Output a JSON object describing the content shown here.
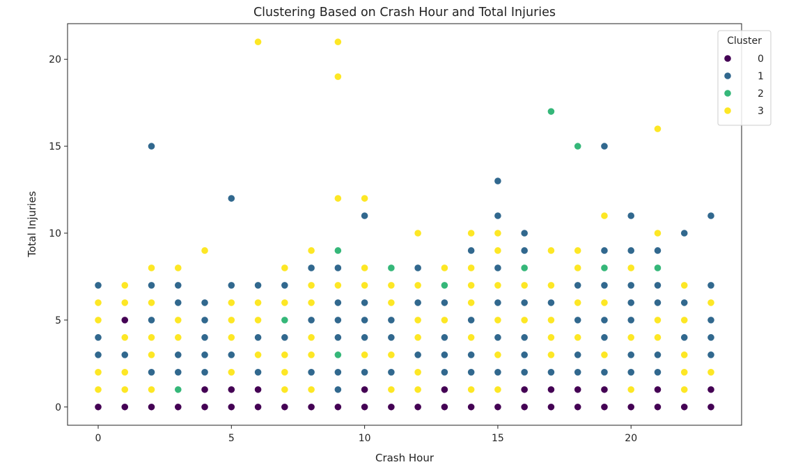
{
  "chart_data": {
    "type": "scatter",
    "title": "Clustering Based on Crash Hour and Total Injuries",
    "xlabel": "Crash Hour",
    "ylabel": "Total Injuries",
    "xlim": [
      -1.15,
      24.15
    ],
    "ylim": [
      -1.05,
      22.05
    ],
    "xticks": [
      0,
      5,
      10,
      15,
      20
    ],
    "yticks": [
      0,
      5,
      10,
      15,
      20
    ],
    "grid": false,
    "legend": {
      "title": "Cluster",
      "position": "top-right"
    },
    "colors": {
      "0": "#440154",
      "1": "#31688e",
      "2": "#35b779",
      "3": "#fde725"
    },
    "series": [
      {
        "name": "0",
        "points": [
          [
            0,
            0
          ],
          [
            1,
            0
          ],
          [
            1,
            5
          ],
          [
            2,
            0
          ],
          [
            3,
            0
          ],
          [
            4,
            0
          ],
          [
            4,
            1
          ],
          [
            5,
            0
          ],
          [
            5,
            1
          ],
          [
            6,
            0
          ],
          [
            6,
            1
          ],
          [
            7,
            0
          ],
          [
            8,
            0
          ],
          [
            9,
            0
          ],
          [
            10,
            0
          ],
          [
            10,
            1
          ],
          [
            11,
            0
          ],
          [
            12,
            0
          ],
          [
            13,
            0
          ],
          [
            13,
            1
          ],
          [
            14,
            0
          ],
          [
            15,
            0
          ],
          [
            16,
            0
          ],
          [
            16,
            1
          ],
          [
            17,
            0
          ],
          [
            17,
            1
          ],
          [
            18,
            0
          ],
          [
            18,
            1
          ],
          [
            19,
            0
          ],
          [
            19,
            1
          ],
          [
            20,
            0
          ],
          [
            21,
            0
          ],
          [
            21,
            1
          ],
          [
            22,
            0
          ],
          [
            23,
            0
          ],
          [
            23,
            1
          ]
        ]
      },
      {
        "name": "1",
        "points": [
          [
            0,
            3
          ],
          [
            0,
            4
          ],
          [
            0,
            7
          ],
          [
            1,
            3
          ],
          [
            2,
            2
          ],
          [
            2,
            5
          ],
          [
            2,
            7
          ],
          [
            2,
            15
          ],
          [
            3,
            2
          ],
          [
            3,
            3
          ],
          [
            3,
            6
          ],
          [
            3,
            7
          ],
          [
            4,
            2
          ],
          [
            4,
            3
          ],
          [
            4,
            4
          ],
          [
            4,
            5
          ],
          [
            4,
            6
          ],
          [
            5,
            3
          ],
          [
            5,
            7
          ],
          [
            5,
            12
          ],
          [
            6,
            2
          ],
          [
            6,
            4
          ],
          [
            6,
            7
          ],
          [
            7,
            4
          ],
          [
            7,
            7
          ],
          [
            8,
            2
          ],
          [
            8,
            5
          ],
          [
            8,
            8
          ],
          [
            9,
            1
          ],
          [
            9,
            2
          ],
          [
            9,
            4
          ],
          [
            9,
            5
          ],
          [
            9,
            6
          ],
          [
            9,
            8
          ],
          [
            10,
            2
          ],
          [
            10,
            4
          ],
          [
            10,
            5
          ],
          [
            10,
            6
          ],
          [
            10,
            11
          ],
          [
            11,
            2
          ],
          [
            11,
            4
          ],
          [
            11,
            5
          ],
          [
            12,
            3
          ],
          [
            12,
            6
          ],
          [
            12,
            8
          ],
          [
            13,
            2
          ],
          [
            13,
            3
          ],
          [
            13,
            4
          ],
          [
            13,
            6
          ],
          [
            14,
            2
          ],
          [
            14,
            3
          ],
          [
            14,
            5
          ],
          [
            14,
            9
          ],
          [
            15,
            2
          ],
          [
            15,
            4
          ],
          [
            15,
            6
          ],
          [
            15,
            8
          ],
          [
            15,
            11
          ],
          [
            15,
            13
          ],
          [
            16,
            2
          ],
          [
            16,
            3
          ],
          [
            16,
            4
          ],
          [
            16,
            6
          ],
          [
            16,
            9
          ],
          [
            16,
            10
          ],
          [
            17,
            2
          ],
          [
            17,
            6
          ],
          [
            18,
            2
          ],
          [
            18,
            3
          ],
          [
            18,
            5
          ],
          [
            18,
            7
          ],
          [
            19,
            2
          ],
          [
            19,
            4
          ],
          [
            19,
            5
          ],
          [
            19,
            7
          ],
          [
            19,
            9
          ],
          [
            19,
            15
          ],
          [
            20,
            2
          ],
          [
            20,
            3
          ],
          [
            20,
            5
          ],
          [
            20,
            6
          ],
          [
            20,
            7
          ],
          [
            20,
            9
          ],
          [
            20,
            11
          ],
          [
            21,
            2
          ],
          [
            21,
            3
          ],
          [
            21,
            6
          ],
          [
            21,
            7
          ],
          [
            21,
            9
          ],
          [
            22,
            4
          ],
          [
            22,
            6
          ],
          [
            22,
            10
          ],
          [
            23,
            3
          ],
          [
            23,
            4
          ],
          [
            23,
            5
          ],
          [
            23,
            7
          ],
          [
            23,
            11
          ]
        ]
      },
      {
        "name": "2",
        "points": [
          [
            3,
            1
          ],
          [
            7,
            5
          ],
          [
            9,
            3
          ],
          [
            9,
            9
          ],
          [
            11,
            8
          ],
          [
            13,
            7
          ],
          [
            16,
            8
          ],
          [
            17,
            17
          ],
          [
            18,
            15
          ],
          [
            19,
            8
          ],
          [
            21,
            8
          ]
        ]
      },
      {
        "name": "3",
        "points": [
          [
            0,
            1
          ],
          [
            0,
            2
          ],
          [
            0,
            5
          ],
          [
            0,
            6
          ],
          [
            1,
            1
          ],
          [
            1,
            2
          ],
          [
            1,
            4
          ],
          [
            1,
            6
          ],
          [
            1,
            7
          ],
          [
            2,
            1
          ],
          [
            2,
            3
          ],
          [
            2,
            4
          ],
          [
            2,
            6
          ],
          [
            2,
            8
          ],
          [
            3,
            4
          ],
          [
            3,
            5
          ],
          [
            3,
            8
          ],
          [
            4,
            9
          ],
          [
            5,
            2
          ],
          [
            5,
            4
          ],
          [
            5,
            5
          ],
          [
            5,
            6
          ],
          [
            6,
            3
          ],
          [
            6,
            5
          ],
          [
            6,
            6
          ],
          [
            6,
            21
          ],
          [
            7,
            1
          ],
          [
            7,
            2
          ],
          [
            7,
            3
          ],
          [
            7,
            6
          ],
          [
            7,
            8
          ],
          [
            8,
            1
          ],
          [
            8,
            3
          ],
          [
            8,
            4
          ],
          [
            8,
            6
          ],
          [
            8,
            7
          ],
          [
            8,
            9
          ],
          [
            9,
            7
          ],
          [
            9,
            12
          ],
          [
            9,
            19
          ],
          [
            9,
            21
          ],
          [
            10,
            3
          ],
          [
            10,
            7
          ],
          [
            10,
            8
          ],
          [
            10,
            12
          ],
          [
            11,
            1
          ],
          [
            11,
            3
          ],
          [
            11,
            6
          ],
          [
            11,
            7
          ],
          [
            12,
            1
          ],
          [
            12,
            2
          ],
          [
            12,
            4
          ],
          [
            12,
            5
          ],
          [
            12,
            7
          ],
          [
            12,
            10
          ],
          [
            13,
            5
          ],
          [
            13,
            8
          ],
          [
            14,
            1
          ],
          [
            14,
            4
          ],
          [
            14,
            6
          ],
          [
            14,
            7
          ],
          [
            14,
            8
          ],
          [
            14,
            10
          ],
          [
            15,
            1
          ],
          [
            15,
            3
          ],
          [
            15,
            5
          ],
          [
            15,
            7
          ],
          [
            15,
            9
          ],
          [
            15,
            10
          ],
          [
            16,
            5
          ],
          [
            16,
            7
          ],
          [
            17,
            3
          ],
          [
            17,
            4
          ],
          [
            17,
            5
          ],
          [
            17,
            7
          ],
          [
            17,
            9
          ],
          [
            18,
            4
          ],
          [
            18,
            6
          ],
          [
            18,
            8
          ],
          [
            18,
            9
          ],
          [
            19,
            3
          ],
          [
            19,
            6
          ],
          [
            19,
            11
          ],
          [
            20,
            1
          ],
          [
            20,
            4
          ],
          [
            20,
            8
          ],
          [
            21,
            4
          ],
          [
            21,
            5
          ],
          [
            21,
            10
          ],
          [
            21,
            16
          ],
          [
            22,
            1
          ],
          [
            22,
            2
          ],
          [
            22,
            3
          ],
          [
            22,
            5
          ],
          [
            22,
            7
          ],
          [
            23,
            2
          ],
          [
            23,
            6
          ]
        ]
      }
    ]
  }
}
